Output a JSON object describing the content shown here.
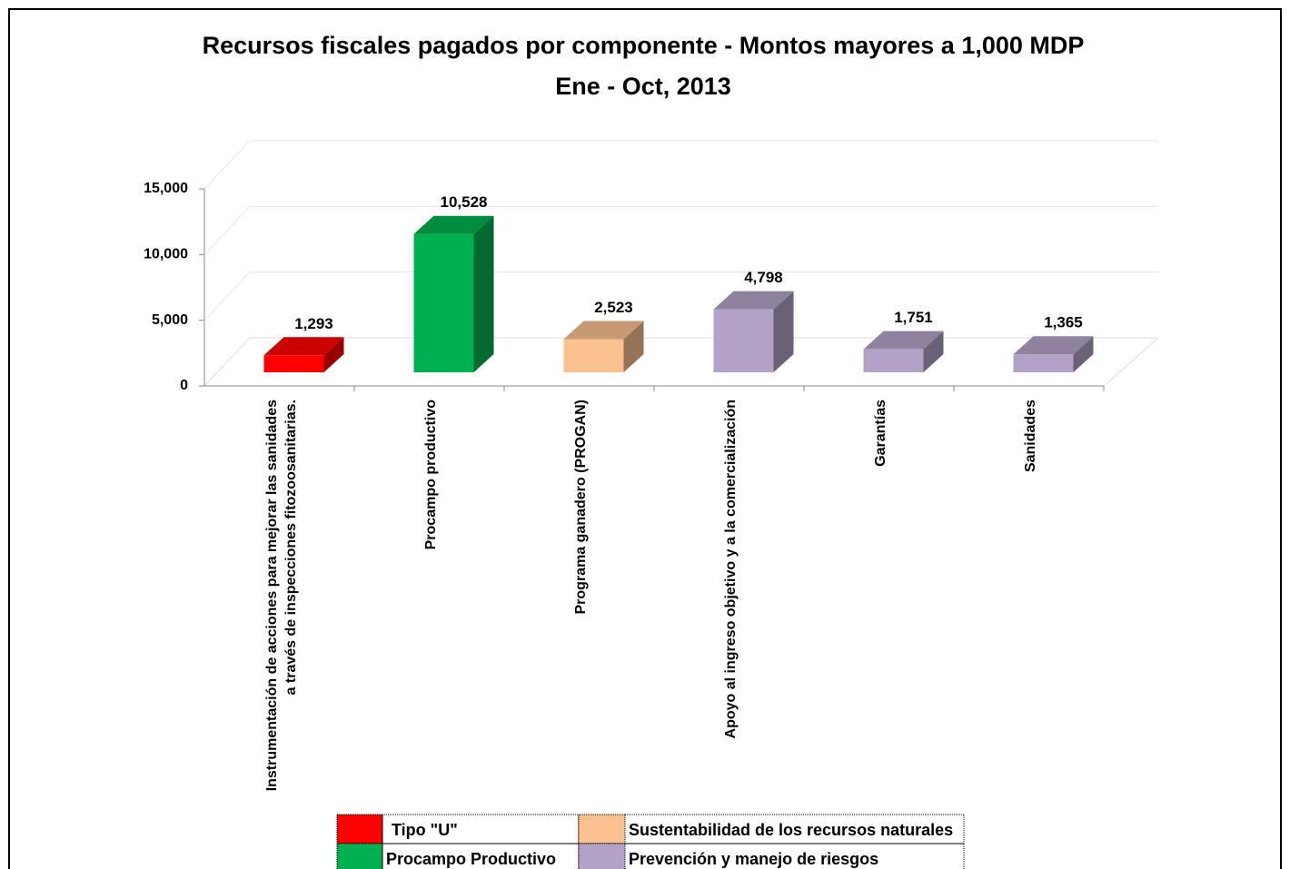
{
  "chart_data": {
    "type": "bar3d",
    "title": "Recursos fiscales pagados por componente - Montos mayores a 1,000 MDP",
    "subtitle": "Ene - Oct, 2013",
    "categories": [
      "Instrumentación de acciones para mejorar las sanidades a través de inspecciones fitozoosanitarias.",
      "Procampo productivo",
      "Programa ganadero (PROGAN)",
      "Apoyo al ingreso objetivo y a la comercialización",
      "Garantías",
      "Sanidades"
    ],
    "values": [
      1293,
      10528,
      2523,
      4798,
      1751,
      1365
    ],
    "value_labels": [
      "1,293",
      "10,528",
      "2,523",
      "4,798",
      "1,751",
      "1,365"
    ],
    "colors": [
      "#ff0000",
      "#00b050",
      "#fac090",
      "#b3a2c7",
      "#b3a2c7",
      "#b3a2c7"
    ],
    "ylim": [
      0,
      15000
    ],
    "yticks": [
      0,
      {
        "value": 5000,
        "label": "5,000"
      },
      {
        "value": 10000,
        "label": "10,000"
      },
      {
        "value": 15000,
        "label": "15,000"
      }
    ],
    "grid": true,
    "legend": [
      {
        "name": "Tipo \"U\"",
        "color": "#ff0000"
      },
      {
        "name": "Sustentabilidad de los recursos naturales",
        "color": "#fac090"
      },
      {
        "name": "Procampo Productivo",
        "color": "#00b050"
      },
      {
        "name": "Prevención y manejo de riesgos",
        "color": "#b3a2c7"
      }
    ]
  }
}
